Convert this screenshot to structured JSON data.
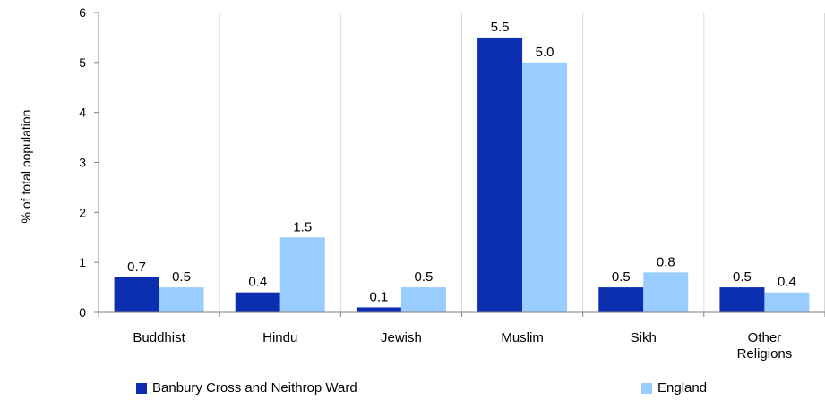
{
  "chart_data": {
    "type": "bar",
    "categories": [
      [
        "Buddhist"
      ],
      [
        "Hindu"
      ],
      [
        "Jewish"
      ],
      [
        "Muslim"
      ],
      [
        "Sikh"
      ],
      [
        "Other",
        "Religions"
      ]
    ],
    "series": [
      {
        "name": "Banbury Cross and Neithrop Ward",
        "values": [
          0.7,
          0.4,
          0.1,
          5.5,
          0.5,
          0.5
        ],
        "labels": [
          "0.7",
          "0.4",
          "0.1",
          "5.5",
          "0.5",
          "0.5"
        ],
        "color": "#0b2fb0"
      },
      {
        "name": "England",
        "values": [
          0.5,
          1.5,
          0.5,
          5.0,
          0.8,
          0.4
        ],
        "labels": [
          "0.5",
          "1.5",
          "0.5",
          "5.0",
          "0.8",
          "0.4"
        ],
        "color": "#99ccff"
      }
    ],
    "ylabel": "% of total population",
    "xlabel": "",
    "ylim": [
      0,
      6
    ],
    "yticks": [
      "0",
      "1",
      "2",
      "3",
      "4",
      "5",
      "6"
    ],
    "grid": "vertical",
    "legend_position": "bottom"
  }
}
